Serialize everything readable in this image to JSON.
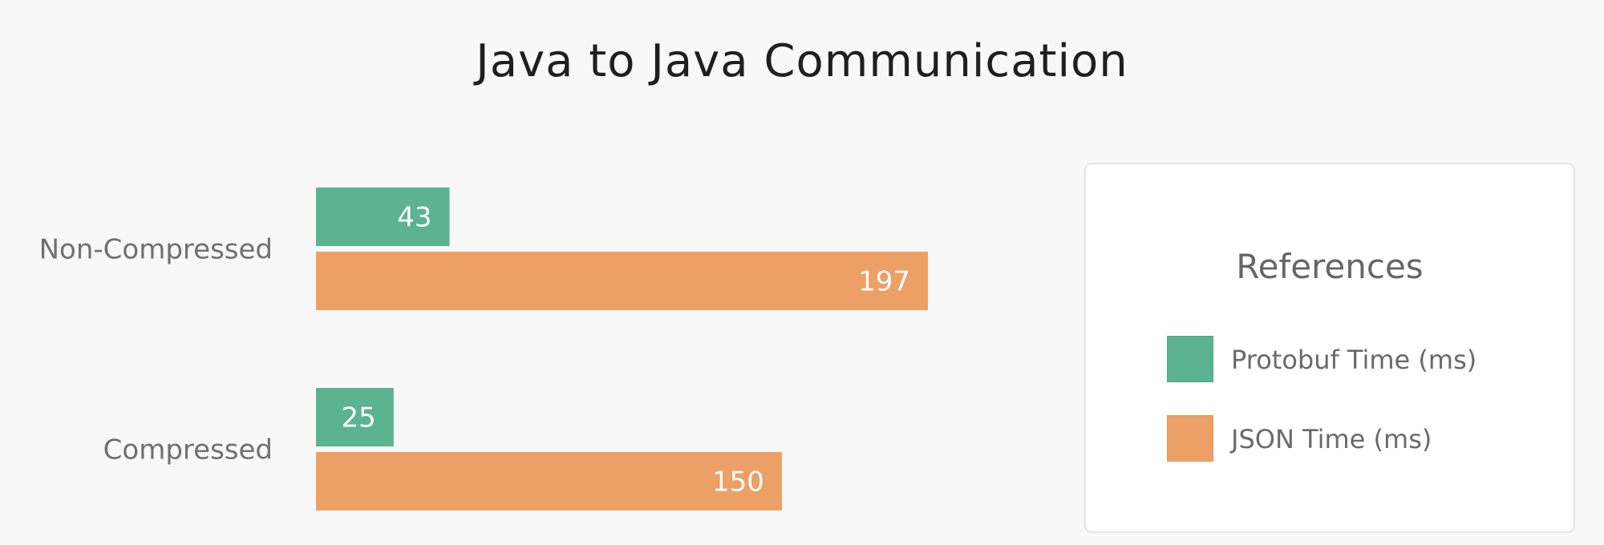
{
  "chart_data": {
    "type": "bar",
    "orientation": "horizontal",
    "title": "Java to Java Communication",
    "categories": [
      "Non-Compressed",
      "Compressed"
    ],
    "series": [
      {
        "name": "Protobuf Time (ms)",
        "color": "#5cb391",
        "values": [
          43,
          25
        ]
      },
      {
        "name": "JSON Time (ms)",
        "color": "#eca065",
        "values": [
          197,
          150
        ]
      }
    ],
    "xlabel": "",
    "ylabel": "",
    "xlim": [
      0,
      197
    ],
    "grid": false,
    "data_labels": true,
    "legend": {
      "title": "References",
      "placement": "right"
    }
  }
}
